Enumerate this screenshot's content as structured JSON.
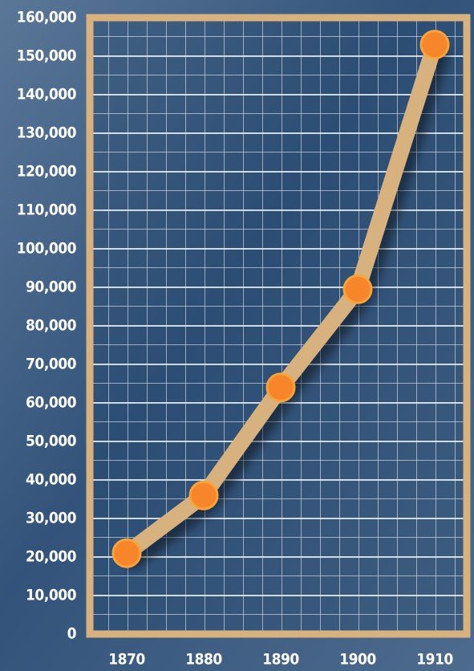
{
  "chart_data": {
    "type": "line",
    "categories": [
      "1870",
      "1880",
      "1890",
      "1900",
      "1910"
    ],
    "values": [
      21000,
      36000,
      64000,
      89500,
      153000
    ],
    "color": "#f7862a",
    "line_color": "#d7b27e",
    "ylim": [
      0,
      160000
    ],
    "yticks": [
      0,
      {
        "value": 10000,
        "label": "10,000"
      },
      {
        "value": 20000,
        "label": "20,000"
      },
      {
        "value": 30000,
        "label": "30,000"
      },
      {
        "value": 40000,
        "label": "40,000"
      },
      {
        "value": 50000,
        "label": "50,000"
      },
      {
        "value": 60000,
        "label": "60,000"
      },
      {
        "value": 70000,
        "label": "70,000"
      },
      {
        "value": 80000,
        "label": "80,000"
      },
      {
        "value": 90000,
        "label": "90,000"
      },
      {
        "value": 100000,
        "label": "100,000"
      },
      {
        "value": 110000,
        "label": "110,000"
      },
      {
        "value": 120000,
        "label": "120,000"
      },
      {
        "value": 130000,
        "label": "130,000"
      },
      {
        "value": 140000,
        "label": "140,000"
      },
      {
        "value": 150000,
        "label": "150,000"
      },
      {
        "value": 160000,
        "label": "160,000"
      }
    ],
    "grid": true
  }
}
